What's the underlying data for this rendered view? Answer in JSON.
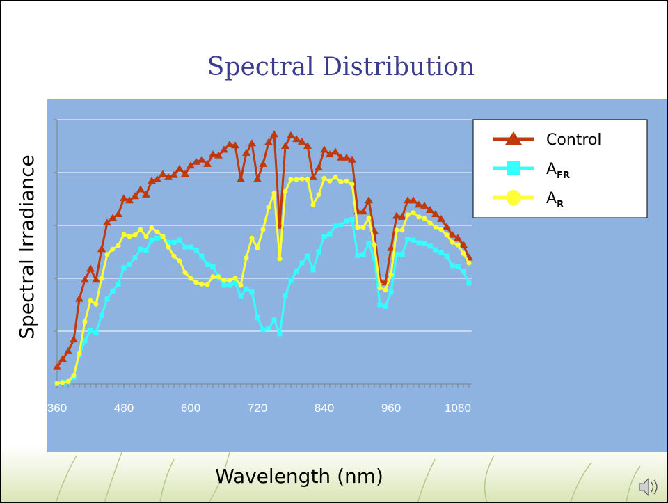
{
  "chart_data": {
    "type": "line",
    "title": "Spectral Distribution",
    "xlabel": "Wavelength (nm)",
    "ylabel": "Spectral Irradiance",
    "x": [
      360,
      370,
      380,
      390,
      400,
      410,
      420,
      430,
      440,
      450,
      460,
      470,
      480,
      490,
      500,
      510,
      520,
      530,
      540,
      550,
      560,
      570,
      580,
      590,
      600,
      610,
      620,
      630,
      640,
      650,
      660,
      670,
      680,
      690,
      700,
      710,
      720,
      730,
      740,
      750,
      760,
      770,
      780,
      790,
      800,
      810,
      820,
      830,
      840,
      850,
      860,
      870,
      880,
      890,
      900,
      910,
      920,
      930,
      940,
      950,
      960,
      970,
      980,
      990,
      1000,
      1010,
      1020,
      1030,
      1040,
      1050,
      1060,
      1070,
      1080,
      1090,
      1100
    ],
    "xlim": [
      360,
      1105
    ],
    "xticks": [
      360,
      480,
      600,
      720,
      840,
      960,
      1080
    ],
    "ylim": [
      0,
      5
    ],
    "yticks": [
      0,
      1,
      2,
      3,
      4,
      5
    ],
    "grid": true,
    "legend": "right",
    "series": [
      {
        "name": "Control",
        "color": "#c0390b",
        "marker": "triangle",
        "values": [
          0.32,
          0.47,
          0.62,
          0.84,
          1.61,
          1.97,
          2.18,
          1.97,
          2.55,
          3.05,
          3.14,
          3.21,
          3.51,
          3.47,
          3.55,
          3.68,
          3.58,
          3.84,
          3.87,
          3.97,
          3.91,
          3.95,
          4.07,
          3.97,
          4.13,
          4.2,
          4.24,
          4.16,
          4.34,
          4.32,
          4.43,
          4.53,
          4.51,
          3.87,
          4.37,
          4.55,
          3.87,
          4.16,
          4.57,
          4.72,
          2.99,
          4.5,
          4.7,
          4.63,
          4.58,
          4.5,
          3.91,
          4.09,
          4.43,
          4.34,
          4.39,
          4.28,
          4.28,
          4.24,
          3.26,
          3.26,
          3.47,
          2.89,
          1.96,
          1.92,
          2.57,
          3.18,
          3.16,
          3.47,
          3.47,
          3.39,
          3.37,
          3.29,
          3.21,
          3.12,
          2.97,
          2.82,
          2.76,
          2.63,
          2.39
        ]
      },
      {
        "name": "A",
        "name_subscript": "FR",
        "color": "#33ffff",
        "marker": "square",
        "values": [
          0.01,
          0.03,
          0.04,
          0.13,
          0.55,
          0.82,
          1.01,
          0.97,
          1.3,
          1.61,
          1.76,
          1.89,
          2.2,
          2.26,
          2.39,
          2.55,
          2.53,
          2.72,
          2.76,
          2.79,
          2.68,
          2.68,
          2.72,
          2.59,
          2.59,
          2.53,
          2.42,
          2.26,
          2.22,
          2.03,
          1.87,
          1.87,
          1.91,
          1.66,
          1.8,
          1.74,
          1.26,
          1.03,
          1.05,
          1.21,
          0.95,
          1.67,
          1.96,
          2.13,
          2.29,
          2.42,
          2.16,
          2.5,
          2.79,
          2.84,
          2.99,
          3.01,
          3.08,
          3.11,
          2.43,
          2.45,
          2.66,
          2.37,
          1.5,
          1.47,
          1.74,
          2.45,
          2.45,
          2.74,
          2.72,
          2.67,
          2.66,
          2.61,
          2.54,
          2.49,
          2.42,
          2.24,
          2.22,
          2.13,
          1.91
        ]
      },
      {
        "name": "A",
        "name_subscript": "R",
        "color": "#ffff33",
        "marker": "circle",
        "values": [
          0.01,
          0.03,
          0.05,
          0.16,
          0.58,
          1.18,
          1.58,
          1.51,
          2.0,
          2.45,
          2.55,
          2.62,
          2.83,
          2.79,
          2.82,
          2.92,
          2.79,
          2.95,
          2.88,
          2.79,
          2.59,
          2.42,
          2.33,
          2.11,
          2.0,
          1.92,
          1.89,
          1.88,
          2.03,
          2.03,
          1.96,
          1.96,
          2.0,
          1.87,
          2.39,
          2.76,
          2.57,
          2.92,
          3.34,
          3.61,
          2.37,
          3.64,
          3.87,
          3.87,
          3.88,
          3.87,
          3.39,
          3.58,
          3.89,
          3.84,
          3.91,
          3.82,
          3.84,
          3.78,
          2.96,
          2.96,
          3.14,
          2.63,
          1.82,
          1.78,
          2.07,
          2.91,
          2.91,
          3.2,
          3.24,
          3.16,
          3.13,
          3.05,
          2.97,
          2.92,
          2.82,
          2.68,
          2.63,
          2.47,
          2.29
        ]
      }
    ]
  }
}
